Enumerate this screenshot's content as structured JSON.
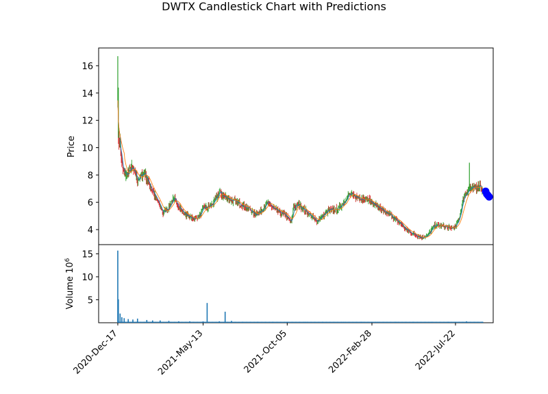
{
  "title": "DWTX Candlestick Chart with Predictions",
  "colors": {
    "up": "#2ca02c",
    "down": "#d62728",
    "ma_fast": "#ff7f0e",
    "ma_slow": "#1f77b4",
    "volume": "#1f77b4",
    "prediction": "#0000ff"
  },
  "chart_data": [
    {
      "type": "candlestick",
      "title": "DWTX Candlestick Chart with Predictions",
      "ylabel": "Price",
      "xlabel": "",
      "ylim": [
        2.9,
        17.3
      ],
      "yticks": [
        4,
        6,
        8,
        10,
        12,
        14,
        16
      ],
      "x_tick_labels": [
        "2020-Dec-17",
        "2021-May-13",
        "2021-Oct-05",
        "2022-Feb-28",
        "2022-Jul-22"
      ],
      "x_tick_dates": [
        "2020-12-17",
        "2021-05-13",
        "2021-10-05",
        "2022-02-28",
        "2022-07-22"
      ],
      "xlim": [
        "2020-11-14",
        "2022-09-25"
      ],
      "grid": false,
      "price_series": {
        "name": "close",
        "dates": [
          "2020-12-17",
          "2020-12-18",
          "2020-12-20",
          "2020-12-22",
          "2020-12-25",
          "2020-12-28",
          "2021-01-01",
          "2021-01-05",
          "2021-01-10",
          "2021-01-15",
          "2021-01-20",
          "2021-01-25",
          "2021-02-01",
          "2021-02-08",
          "2021-02-15",
          "2021-02-22",
          "2021-03-01",
          "2021-03-05",
          "2021-03-10",
          "2021-03-15",
          "2021-03-20",
          "2021-03-25",
          "2021-04-01",
          "2021-04-10",
          "2021-04-20",
          "2021-05-01",
          "2021-05-10",
          "2021-05-13",
          "2021-05-20",
          "2021-05-28",
          "2021-06-05",
          "2021-06-10",
          "2021-06-15",
          "2021-06-20",
          "2021-06-30",
          "2021-07-10",
          "2021-07-20",
          "2021-08-01",
          "2021-08-10",
          "2021-08-20",
          "2021-09-01",
          "2021-09-10",
          "2021-09-20",
          "2021-10-01",
          "2021-10-05",
          "2021-10-12",
          "2021-10-16",
          "2021-10-25",
          "2021-11-05",
          "2021-11-15",
          "2021-11-25",
          "2021-12-05",
          "2021-12-15",
          "2022-01-01",
          "2022-01-10",
          "2022-01-20",
          "2022-02-01",
          "2022-02-10",
          "2022-02-20",
          "2022-02-28",
          "2022-03-10",
          "2022-03-20",
          "2022-04-01",
          "2022-04-10",
          "2022-04-20",
          "2022-04-25",
          "2022-05-05",
          "2022-05-15",
          "2022-05-25",
          "2022-06-05",
          "2022-06-15",
          "2022-06-25",
          "2022-07-05",
          "2022-07-15",
          "2022-07-22",
          "2022-07-28",
          "2022-08-05",
          "2022-08-15",
          "2022-08-22",
          "2022-08-28",
          "2022-09-03",
          "2022-09-07"
        ],
        "values": [
          13.8,
          10.5,
          10.2,
          9.6,
          8.4,
          8.1,
          8.0,
          8.3,
          8.5,
          8.2,
          7.6,
          7.9,
          8.2,
          7.4,
          6.8,
          6.2,
          5.6,
          5.2,
          5.5,
          5.6,
          6.1,
          6.2,
          5.7,
          5.2,
          4.9,
          4.8,
          5.2,
          5.6,
          5.6,
          5.8,
          6.3,
          6.8,
          6.5,
          6.4,
          6.2,
          6.0,
          5.8,
          5.5,
          5.1,
          5.3,
          6.0,
          5.6,
          5.3,
          5.1,
          4.9,
          4.5,
          5.7,
          5.8,
          5.4,
          5.0,
          4.6,
          5.0,
          5.4,
          5.5,
          6.0,
          6.6,
          6.4,
          6.3,
          6.2,
          6.0,
          5.7,
          5.3,
          5.1,
          4.7,
          4.4,
          4.1,
          3.8,
          3.6,
          3.4,
          3.6,
          4.3,
          4.3,
          4.2,
          4.1,
          4.2,
          4.8,
          6.4,
          7.0,
          7.0,
          7.1,
          7.3,
          6.7
        ]
      },
      "high_spikes": [
        {
          "date": "2020-12-17",
          "high": 16.7
        },
        {
          "date": "2020-12-18",
          "high": 14.4
        },
        {
          "date": "2020-12-21",
          "high": 11.0
        },
        {
          "date": "2022-08-15",
          "high": 8.9
        }
      ],
      "predictions": {
        "name": "predictions",
        "dates": [
          "2022-09-12",
          "2022-09-14",
          "2022-09-16",
          "2022-09-18"
        ],
        "values": [
          6.8,
          6.6,
          6.5,
          6.4
        ]
      }
    },
    {
      "type": "bar",
      "ylabel": "Volume  10^6",
      "ylim": [
        0,
        17
      ],
      "yticks": [
        5,
        10,
        15
      ],
      "series": [
        {
          "dates": [
            "2020-12-17",
            "2020-12-18",
            "2020-12-21",
            "2020-12-24",
            "2020-12-28",
            "2021-01-04",
            "2021-01-12",
            "2021-01-20",
            "2021-02-05",
            "2021-02-15",
            "2021-02-28",
            "2021-03-15",
            "2021-04-01",
            "2021-04-20",
            "2021-05-13",
            "2021-05-20",
            "2021-06-10",
            "2021-06-20",
            "2021-07-01",
            "2021-07-20",
            "2021-08-15",
            "2021-09-10",
            "2021-10-05",
            "2021-11-05",
            "2021-12-05",
            "2022-01-10",
            "2022-02-10",
            "2022-03-10",
            "2022-04-10",
            "2022-05-10",
            "2022-06-10",
            "2022-07-10",
            "2022-08-10",
            "2022-09-07"
          ],
          "values": [
            15.7,
            5.1,
            2.0,
            1.2,
            1.0,
            0.8,
            0.7,
            0.9,
            0.6,
            0.5,
            0.5,
            0.4,
            0.3,
            0.3,
            0.3,
            4.3,
            0.3,
            2.4,
            0.4,
            0.2,
            0.2,
            0.2,
            0.2,
            0.2,
            0.2,
            0.2,
            0.2,
            0.2,
            0.2,
            0.2,
            0.2,
            0.2,
            0.3,
            0.2
          ]
        }
      ]
    }
  ]
}
